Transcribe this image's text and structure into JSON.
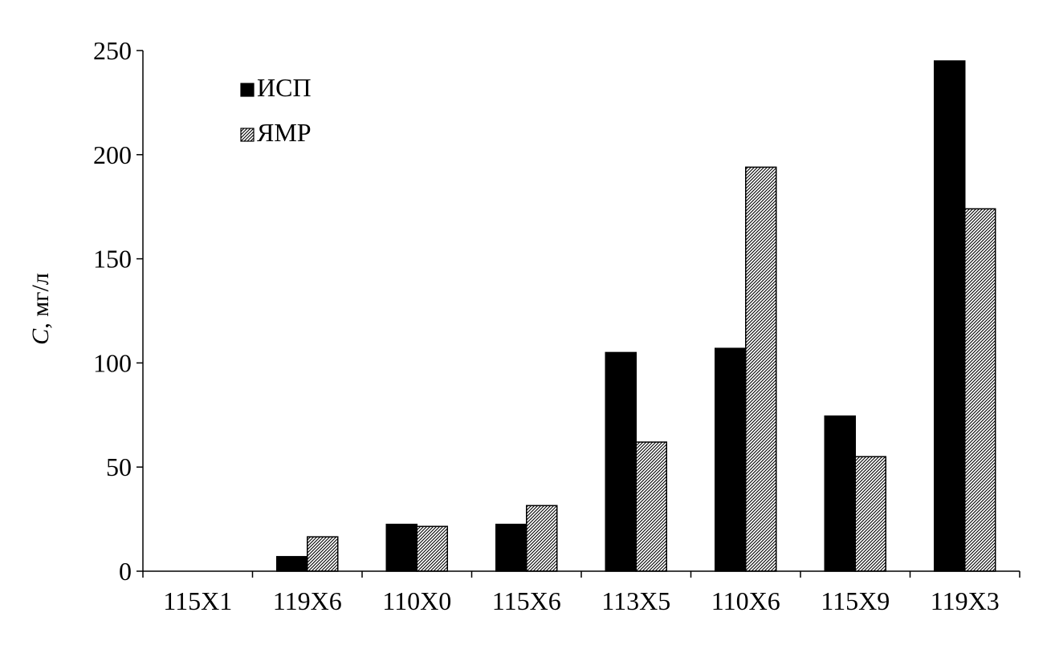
{
  "chart_data": {
    "type": "bar",
    "categories": [
      "115X1",
      "119X6",
      "110X0",
      "115X6",
      "113X5",
      "110X6",
      "115X9",
      "119X3"
    ],
    "series": [
      {
        "name": "ИСП",
        "values": [
          0,
          7,
          22.5,
          22.5,
          105,
          107,
          74.5,
          245
        ],
        "fill": "#000000"
      },
      {
        "name": "ЯМР",
        "values": [
          0,
          16.5,
          21.5,
          31.5,
          62,
          194,
          55,
          174
        ],
        "fill": "hatch"
      }
    ],
    "yticks": [
      0,
      50,
      100,
      150,
      200,
      250
    ],
    "ylim": [
      0,
      250
    ],
    "ylabel": {
      "italic": "C",
      "rest": ", мг/л"
    },
    "xlabel": "",
    "title": "",
    "legend_position": "top-left",
    "grid": false
  }
}
